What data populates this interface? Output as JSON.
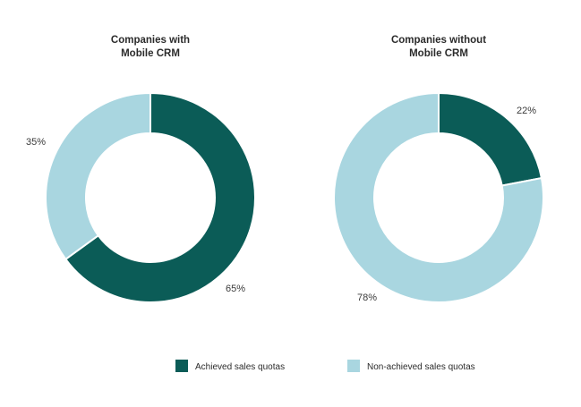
{
  "chart_data": [
    {
      "type": "pie",
      "style": "donut",
      "title_lines": [
        "Companies with",
        "Mobile CRM"
      ],
      "slices": [
        {
          "label": "Achieved sales quotas",
          "value": 65,
          "display": "65%"
        },
        {
          "label": "Non-achieved sales quotas",
          "value": 35,
          "display": "35%"
        }
      ]
    },
    {
      "type": "pie",
      "style": "donut",
      "title_lines": [
        "Companies without",
        "Mobile CRM"
      ],
      "slices": [
        {
          "label": "Achieved sales quotas",
          "value": 22,
          "display": "22%"
        },
        {
          "label": "Non-achieved sales quotas",
          "value": 78,
          "display": "78%"
        }
      ]
    }
  ],
  "legend": {
    "placement": "bottom",
    "items": [
      {
        "label": "Achieved sales quotas",
        "color": "#0b5c57"
      },
      {
        "label": "Non-achieved sales quotas",
        "color": "#a9d6e0"
      }
    ]
  },
  "colors": {
    "achieved": "#0b5c57",
    "non_achieved": "#a9d6e0"
  }
}
